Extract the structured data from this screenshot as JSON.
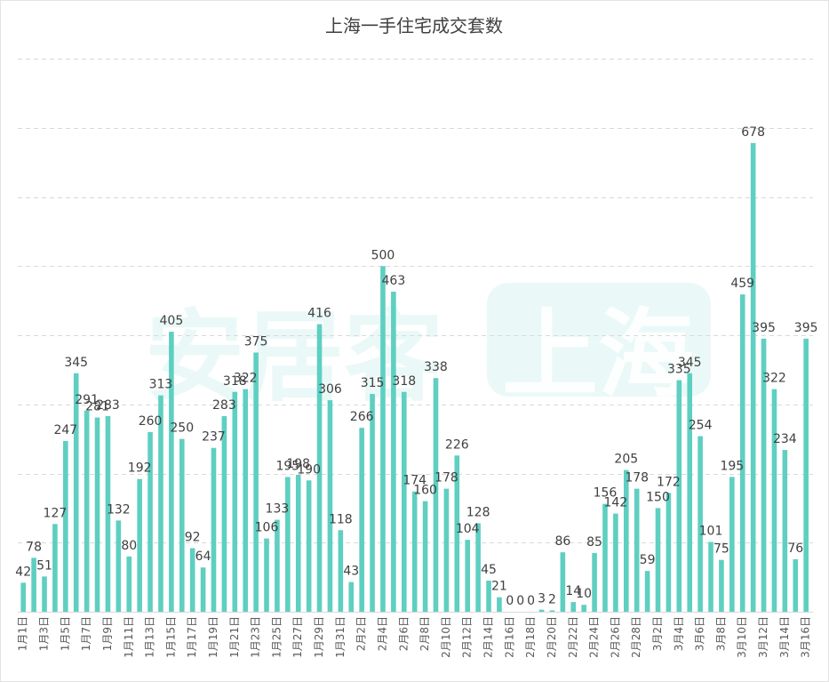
{
  "chart_data": {
    "type": "bar",
    "title": "上海一手住宅成交套数",
    "categories": [
      "1月1日",
      "",
      "1月3日",
      "",
      "1月5日",
      "",
      "1月7日",
      "",
      "1月9日",
      "",
      "1月11日",
      "",
      "1月13日",
      "",
      "1月15日",
      "",
      "1月17日",
      "",
      "1月19日",
      "",
      "1月21日",
      "",
      "1月23日",
      "",
      "1月25日",
      "",
      "1月27日",
      "",
      "1月29日",
      "",
      "1月31日",
      "",
      "2月2日",
      "",
      "2月4日",
      "",
      "2月6日",
      "",
      "2月8日",
      "",
      "2月10日",
      "",
      "2月12日",
      "",
      "2月14日",
      "",
      "2月16日",
      "",
      "2月18日",
      "",
      "2月20日",
      "",
      "2月22日",
      "",
      "2月24日",
      "",
      "2月26日",
      "",
      "2月28日",
      "",
      "3月2日",
      "",
      "3月4日",
      "",
      "3月6日",
      "",
      "3月8日",
      "",
      "3月10日",
      "",
      "3月12日",
      "",
      "3月14日",
      "",
      "3月16日"
    ],
    "values": [
      42,
      78,
      51,
      127,
      247,
      345,
      291,
      281,
      283,
      132,
      80,
      192,
      260,
      313,
      405,
      250,
      92,
      64,
      237,
      283,
      318,
      322,
      375,
      106,
      133,
      195,
      198,
      190,
      416,
      306,
      118,
      43,
      266,
      315,
      500,
      463,
      318,
      174,
      160,
      338,
      178,
      226,
      104,
      128,
      45,
      21,
      0,
      0,
      0,
      3,
      2,
      86,
      14,
      10,
      85,
      156,
      142,
      205,
      178,
      59,
      150,
      172,
      335,
      345,
      254,
      101,
      75,
      195,
      459,
      678,
      395,
      322,
      234,
      76,
      395
    ],
    "ylim": [
      0,
      800
    ],
    "grid": true,
    "legend": "none",
    "data_labels": true,
    "bar_color": "#5ECFC1"
  },
  "watermark": {
    "brand": "安居客",
    "city": "上海"
  }
}
